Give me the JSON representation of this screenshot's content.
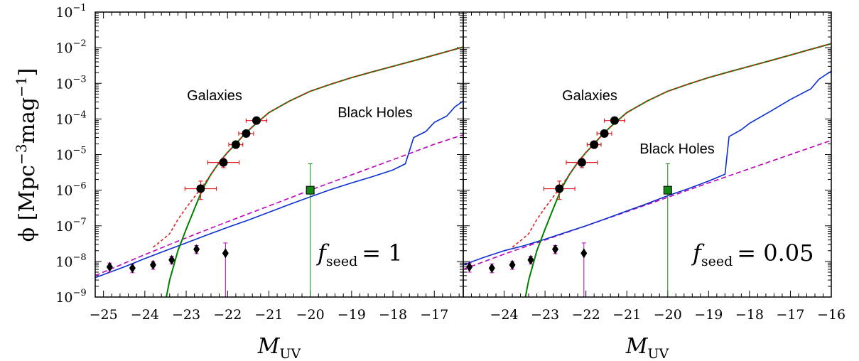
{
  "chart_data": {
    "type": "line",
    "shared": {
      "y_scale": "log",
      "ylim": [
        1e-09,
        0.1
      ],
      "ylabel_main": "ϕ [Mpc",
      "ylabel_exp1": "−3",
      "ylabel_mid": "mag",
      "ylabel_exp2": "−1",
      "ylabel_end": "]",
      "xlabel_main": "M",
      "xlabel_sub": "UV",
      "y_tick_exponents": [
        "−9",
        "−8",
        "−7",
        "−6",
        "−5",
        "−4",
        "−3",
        "−2",
        "−1"
      ],
      "y_tick_base": "10",
      "colors": {
        "galaxies": "#007f00",
        "galaxies_dashed": "#e02020",
        "black_holes": "#0a2fd0",
        "bh_dashed": "#bf00bf",
        "data_points": "#000000",
        "galaxy_errorbars": "#e02020",
        "bh_upper_limits": "#bf00bf",
        "green_square": "#118811"
      },
      "galaxy_points": [
        {
          "x": -22.65,
          "y": 1.1e-06,
          "xerr": 0.38,
          "ylo": 5.5e-07,
          "yhi": 1.8e-06
        },
        {
          "x": -22.1,
          "y": 6e-06,
          "xerr": 0.38,
          "ylo": 4.3e-06,
          "yhi": 7.8e-06
        },
        {
          "x": -21.8,
          "y": 1.9e-05,
          "xerr": 0.17,
          "ylo": 1.5e-05,
          "yhi": 2.4e-05
        },
        {
          "x": -21.55,
          "y": 3.9e-05,
          "xerr": 0.18,
          "ylo": 3.1e-05,
          "yhi": 4.7e-05
        },
        {
          "x": -21.3,
          "y": 9e-05,
          "xerr": 0.25,
          "ylo": 7.5e-05,
          "yhi": 0.000105
        }
      ],
      "qso_points": [
        {
          "x": -24.85,
          "y": 7e-09,
          "ylo": 5e-09,
          "yhi": 9e-09
        },
        {
          "x": -24.3,
          "y": 6.5e-09,
          "ylo": 4.8e-09,
          "yhi": 8.5e-09
        },
        {
          "x": -23.8,
          "y": 8e-09,
          "ylo": 6e-09,
          "yhi": 1e-08
        },
        {
          "x": -23.35,
          "y": 1.1e-08,
          "ylo": 8.5e-09,
          "yhi": 1.4e-08
        },
        {
          "x": -22.75,
          "y": 2.2e-08,
          "ylo": 1.65e-08,
          "yhi": 2.8e-08
        },
        {
          "x": -22.05,
          "y": 1.7e-08,
          "ylo": 1e-09,
          "yhi": 3.3e-08
        }
      ],
      "square_point": {
        "x": -20.0,
        "y": 1e-06,
        "ylo": 1e-09,
        "yhi": 5.5e-06
      },
      "galaxy_curve": [
        [
          -23.48,
          1e-09
        ],
        [
          -23.4,
          3e-09
        ],
        [
          -23.2,
          2e-08
        ],
        [
          -23.0,
          8e-08
        ],
        [
          -22.8,
          3e-07
        ],
        [
          -22.6,
          1.1e-06
        ],
        [
          -22.4,
          2.8e-06
        ],
        [
          -22.2,
          6e-06
        ],
        [
          -22.0,
          1.15e-05
        ],
        [
          -21.8,
          2e-05
        ],
        [
          -21.6,
          3.6e-05
        ],
        [
          -21.4,
          6e-05
        ],
        [
          -21.2,
          9.5e-05
        ],
        [
          -21.0,
          0.00015
        ],
        [
          -20.5,
          0.00032
        ],
        [
          -20.0,
          0.0006
        ],
        [
          -19.5,
          0.00095
        ],
        [
          -19.0,
          0.00145
        ],
        [
          -18.5,
          0.0021
        ],
        [
          -18.0,
          0.003
        ],
        [
          -17.5,
          0.0043
        ],
        [
          -17.0,
          0.0062
        ],
        [
          -16.5,
          0.009
        ],
        [
          -16.0,
          0.013
        ],
        [
          -15.7,
          0.0162
        ]
      ],
      "galaxy_curve_dashed": [
        [
          -23.8,
          2.5e-08
        ],
        [
          -23.6,
          3.8e-08
        ],
        [
          -23.4,
          6e-08
        ],
        [
          -23.2,
          1.5e-07
        ],
        [
          -23.0,
          3.2e-07
        ],
        [
          -22.8,
          6.5e-07
        ],
        [
          -22.6,
          1.3e-06
        ],
        [
          -22.4,
          2.8e-06
        ],
        [
          -22.2,
          6e-06
        ],
        [
          -22.0,
          1.15e-05
        ],
        [
          -21.8,
          2e-05
        ],
        [
          -21.6,
          3.6e-05
        ],
        [
          -21.4,
          6e-05
        ],
        [
          -21.2,
          9.5e-05
        ],
        [
          -21.0,
          0.00015
        ],
        [
          -20.5,
          0.00032
        ],
        [
          -20.0,
          0.0006
        ],
        [
          -19.5,
          0.00095
        ],
        [
          -19.0,
          0.00145
        ],
        [
          -18.5,
          0.0021
        ],
        [
          -18.0,
          0.003
        ],
        [
          -17.5,
          0.0043
        ],
        [
          -17.0,
          0.0062
        ],
        [
          -16.5,
          0.009
        ],
        [
          -16.0,
          0.013
        ],
        [
          -15.7,
          0.0168
        ]
      ]
    },
    "panels": [
      {
        "xlim": [
          -25.2,
          -16.3
        ],
        "x_ticks": [
          -25,
          -24,
          -23,
          -22,
          -21,
          -20,
          -19,
          -18,
          -17
        ],
        "x_tick_labels": [
          "−25",
          "−24",
          "−23",
          "−22",
          "−21",
          "−20",
          "−19",
          "−18",
          "−17"
        ],
        "label_galaxies": "Galaxies",
        "label_bh": "Black Holes",
        "fseed_prefix": "f",
        "fseed_sub": "seed",
        "fseed_value": "= 1",
        "bh_curve": [
          [
            -25.2,
            3.5e-09
          ],
          [
            -24.5,
            7e-09
          ],
          [
            -24.0,
            1.2e-08
          ],
          [
            -23.5,
            2e-08
          ],
          [
            -23.0,
            3.3e-08
          ],
          [
            -22.5,
            5.5e-08
          ],
          [
            -22.0,
            9e-08
          ],
          [
            -21.5,
            1.45e-07
          ],
          [
            -21.0,
            2.4e-07
          ],
          [
            -20.5,
            4e-07
          ],
          [
            -20.0,
            6.5e-07
          ],
          [
            -19.5,
            1.05e-06
          ],
          [
            -19.0,
            1.6e-06
          ],
          [
            -18.5,
            2.4e-06
          ],
          [
            -18.0,
            3.7e-06
          ],
          [
            -17.7,
            5.5e-06
          ],
          [
            -17.5,
            3e-05
          ],
          [
            -17.2,
            4.5e-05
          ],
          [
            -17.0,
            8e-05
          ],
          [
            -16.7,
            0.00012
          ],
          [
            -16.5,
            0.00022
          ],
          [
            -16.3,
            0.00032
          ]
        ],
        "bh_dashed_curve": [
          [
            -25.2,
            4e-09
          ],
          [
            -24.0,
            1.55e-08
          ],
          [
            -23.0,
            4.6e-08
          ],
          [
            -22.0,
            1.3e-07
          ],
          [
            -21.0,
            3.6e-07
          ],
          [
            -20.0,
            1e-06
          ],
          [
            -19.0,
            2.7e-06
          ],
          [
            -18.0,
            7.2e-06
          ],
          [
            -17.0,
            1.95e-05
          ],
          [
            -16.3,
            3.6e-05
          ]
        ]
      },
      {
        "xlim": [
          -25.0,
          -16.0
        ],
        "x_ticks": [
          -24,
          -23,
          -22,
          -21,
          -20,
          -19,
          -18,
          -17,
          -16
        ],
        "x_tick_labels": [
          "−24",
          "−23",
          "−22",
          "−21",
          "−20",
          "−19",
          "−18",
          "−17",
          "−16"
        ],
        "label_galaxies": "Galaxies",
        "label_bh": "Black Holes",
        "fseed_prefix": "f",
        "fseed_sub": "seed",
        "fseed_value": "= 0.05",
        "bh_curve": [
          [
            -25.0,
            8e-09
          ],
          [
            -24.5,
            1.3e-08
          ],
          [
            -24.0,
            2e-08
          ],
          [
            -23.5,
            2.8e-08
          ],
          [
            -23.0,
            4.2e-08
          ],
          [
            -22.5,
            6.5e-08
          ],
          [
            -22.0,
            1e-07
          ],
          [
            -21.5,
            1.6e-07
          ],
          [
            -21.0,
            2.6e-07
          ],
          [
            -20.5,
            4.2e-07
          ],
          [
            -20.0,
            7e-07
          ],
          [
            -19.5,
            1.1e-06
          ],
          [
            -19.0,
            1.8e-06
          ],
          [
            -18.6,
            2.8e-06
          ],
          [
            -18.5,
            3.2e-05
          ],
          [
            -18.2,
            5e-05
          ],
          [
            -18.0,
            7.5e-05
          ],
          [
            -17.5,
            0.00016
          ],
          [
            -17.0,
            0.00035
          ],
          [
            -16.5,
            0.0007
          ],
          [
            -16.3,
            0.0013
          ],
          [
            -16.0,
            0.0022
          ]
        ],
        "bh_dashed_curve": [
          [
            -25.0,
            6e-09
          ],
          [
            -24.0,
            1.6e-08
          ],
          [
            -23.0,
            4e-08
          ],
          [
            -22.0,
            1e-07
          ],
          [
            -21.0,
            2.5e-07
          ],
          [
            -20.0,
            6.3e-07
          ],
          [
            -19.0,
            1.6e-06
          ],
          [
            -18.0,
            4e-06
          ],
          [
            -17.0,
            1e-05
          ],
          [
            -16.0,
            2.5e-05
          ]
        ]
      }
    ]
  }
}
